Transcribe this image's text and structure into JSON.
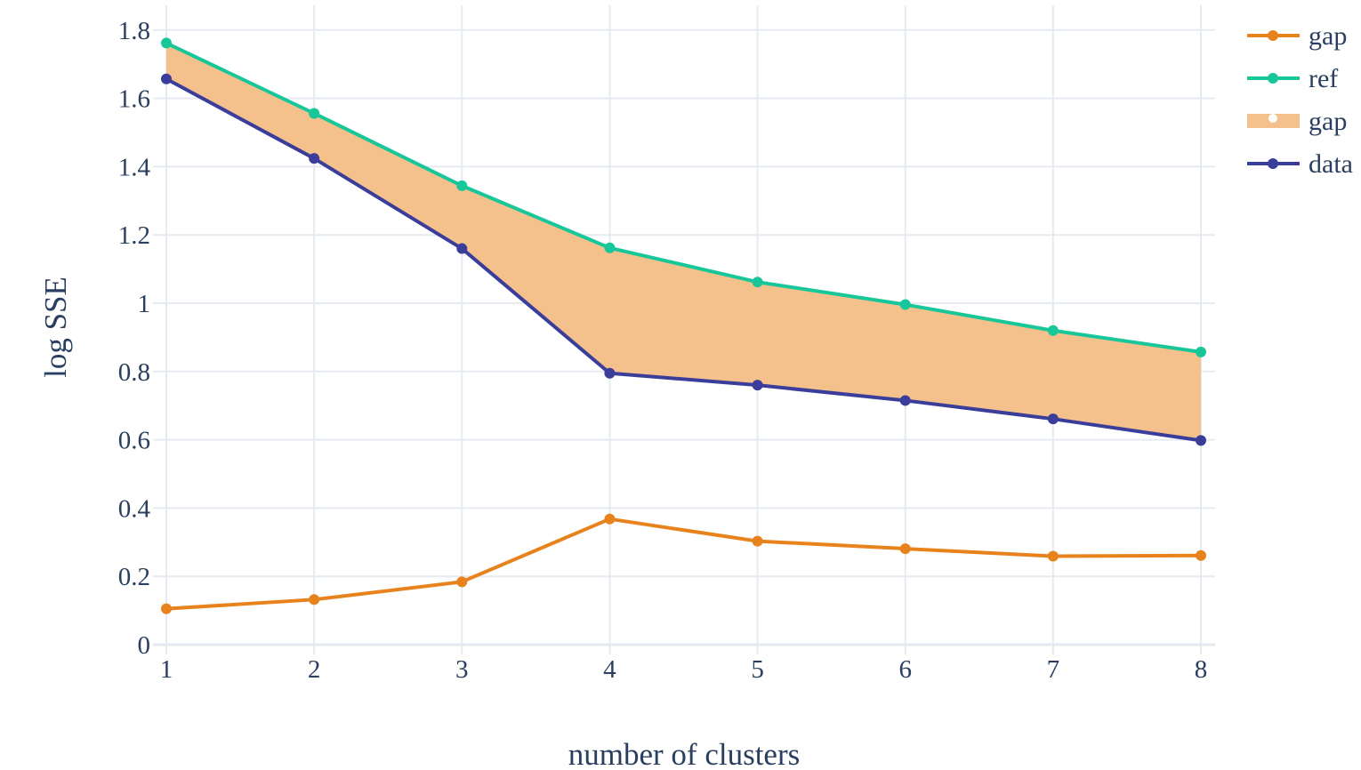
{
  "chart_data": {
    "type": "line",
    "title": "",
    "xlabel": "number of clusters",
    "ylabel": "log SSE",
    "x": [
      1,
      2,
      3,
      4,
      5,
      6,
      7,
      8
    ],
    "xlim": [
      1,
      8
    ],
    "ylim": [
      0,
      1.85
    ],
    "x_ticks": [
      "1",
      "2",
      "3",
      "4",
      "5",
      "6",
      "7",
      "8"
    ],
    "y_ticks": [
      0,
      0.2,
      0.4,
      0.6,
      0.8,
      1,
      1.2,
      1.4,
      1.6,
      1.8
    ],
    "y_tick_labels": [
      "0",
      "0.2",
      "0.4",
      "0.6",
      "0.8",
      "1",
      "1.2",
      "1.4",
      "1.6",
      "1.8"
    ],
    "grid": true,
    "legend_position": "top-right",
    "series": [
      {
        "name": "gap",
        "kind": "line",
        "color": "#e8821c",
        "values": [
          0.105,
          0.132,
          0.184,
          0.368,
          0.303,
          0.281,
          0.259,
          0.261
        ]
      },
      {
        "name": "ref",
        "kind": "line",
        "color": "#17c79a",
        "values": [
          1.762,
          1.556,
          1.344,
          1.162,
          1.062,
          0.996,
          0.92,
          0.857
        ]
      },
      {
        "name": "gap",
        "kind": "area",
        "color": "#f4c08b",
        "between": [
          "ref",
          "data"
        ]
      },
      {
        "name": "data",
        "kind": "line",
        "color": "#3b3d9a",
        "values": [
          1.657,
          1.424,
          1.16,
          0.795,
          0.76,
          0.715,
          0.661,
          0.598
        ]
      }
    ]
  }
}
